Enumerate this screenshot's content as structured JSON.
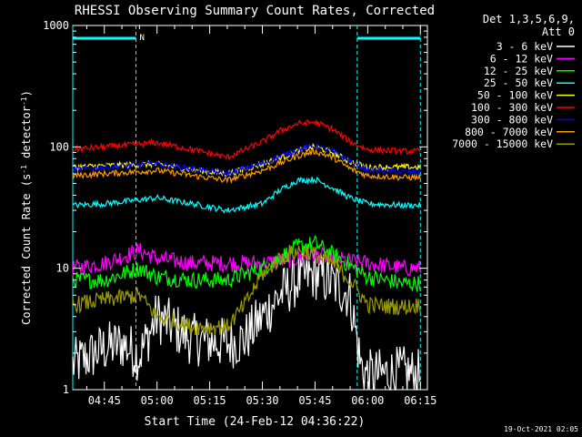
{
  "chart_data": {
    "type": "line",
    "title": "RHESSI Observing Summary Count Rates, Corrected",
    "xlabel": "Start Time (24-Feb-12 04:36:22)",
    "ylabel": "Corrected Count Rate (s⁻¹ detector⁻¹)",
    "ylabel_parts": {
      "main": "Corrected Count Rate (s",
      "sup1": "-1",
      "mid": " detector",
      "sup2": "-1",
      "end": ")"
    },
    "yscale": "log",
    "ylim": [
      1,
      1000
    ],
    "ytick_labels": [
      "1",
      "10",
      "100",
      "1000"
    ],
    "ytick_values": [
      1,
      10,
      100,
      1000
    ],
    "xlim": [
      "04:36",
      "06:17"
    ],
    "xtick_labels": [
      "04:45",
      "05:00",
      "05:15",
      "05:30",
      "05:45",
      "06:00",
      "06:15"
    ],
    "legend_header": [
      "Det 1,3,5,6,9,",
      "Att 0"
    ],
    "legend_position": "right",
    "grid": false,
    "footer": "19-Oct-2021 02:05",
    "night_marker_label": "N",
    "night_intervals": [
      [
        "04:36",
        "04:54"
      ],
      [
        "05:57",
        "06:15"
      ]
    ],
    "series": [
      {
        "name": "3 - 6 keV",
        "color": "#ffffff",
        "x": [
          "04:36",
          "04:45",
          "04:50",
          "04:55",
          "05:00",
          "05:10",
          "05:20",
          "05:25",
          "05:30",
          "05:35",
          "05:40",
          "05:45",
          "05:50",
          "05:55",
          "05:58",
          "06:00",
          "06:10",
          "06:15"
        ],
        "y": [
          1.6,
          2.2,
          2.4,
          1.9,
          4.0,
          2.6,
          2.4,
          2.6,
          4.0,
          6.0,
          8.0,
          9.0,
          7.5,
          6.0,
          1.6,
          1.3,
          1.4,
          1.3
        ]
      },
      {
        "name": "6 - 12 keV",
        "color": "#ff00ff",
        "x": [
          "04:36",
          "04:45",
          "04:55",
          "05:00",
          "05:10",
          "05:20",
          "05:30",
          "05:40",
          "05:45",
          "05:50",
          "06:00",
          "06:10",
          "06:15"
        ],
        "y": [
          10,
          11,
          14,
          12,
          11,
          11,
          11,
          12,
          13,
          12,
          11,
          10,
          10
        ]
      },
      {
        "name": "12 - 25 keV",
        "color": "#00ff00",
        "x": [
          "04:36",
          "04:45",
          "04:55",
          "05:00",
          "05:10",
          "05:20",
          "05:30",
          "05:40",
          "05:45",
          "05:50",
          "06:00",
          "06:10",
          "06:15"
        ],
        "y": [
          8,
          8,
          10,
          8.5,
          8,
          8,
          10,
          15,
          16,
          13,
          8.5,
          7.5,
          7.5
        ]
      },
      {
        "name": "25 - 50 keV",
        "color": "#00ffff",
        "x": [
          "04:36",
          "04:45",
          "05:00",
          "05:10",
          "05:20",
          "05:30",
          "05:35",
          "05:40",
          "05:45",
          "05:50",
          "05:55",
          "06:00",
          "06:10",
          "06:15"
        ],
        "y": [
          33,
          34,
          38,
          34,
          30,
          34,
          44,
          53,
          54,
          46,
          38,
          34,
          33,
          33
        ]
      },
      {
        "name": "50 - 100 keV",
        "color": "#ffff00",
        "x": [
          "04:36",
          "04:45",
          "05:00",
          "05:10",
          "05:20",
          "05:30",
          "05:40",
          "05:45",
          "05:50",
          "05:55",
          "06:00",
          "06:10",
          "06:15"
        ],
        "y": [
          68,
          70,
          72,
          65,
          60,
          72,
          92,
          100,
          90,
          75,
          68,
          68,
          68
        ]
      },
      {
        "name": "100 - 300 keV",
        "color": "#ff0000",
        "x": [
          "04:36",
          "04:45",
          "05:00",
          "05:10",
          "05:20",
          "05:30",
          "05:35",
          "05:40",
          "05:45",
          "05:50",
          "05:55",
          "06:00",
          "06:10",
          "06:15"
        ],
        "y": [
          95,
          100,
          108,
          95,
          82,
          110,
          135,
          155,
          160,
          140,
          110,
          95,
          92,
          92
        ]
      },
      {
        "name": "300 - 800 keV",
        "color": "#0000ff",
        "x": [
          "04:36",
          "04:45",
          "05:00",
          "05:10",
          "05:20",
          "05:30",
          "05:40",
          "05:45",
          "05:50",
          "05:55",
          "06:00",
          "06:10",
          "06:15"
        ],
        "y": [
          65,
          68,
          73,
          66,
          60,
          73,
          95,
          102,
          92,
          76,
          65,
          62,
          62
        ]
      },
      {
        "name": "800 - 7000 keV",
        "color": "#ff9900",
        "x": [
          "04:36",
          "04:45",
          "05:00",
          "05:10",
          "05:20",
          "05:30",
          "05:40",
          "05:45",
          "05:50",
          "05:55",
          "06:00",
          "06:10",
          "06:15"
        ],
        "y": [
          58,
          60,
          64,
          58,
          53,
          64,
          84,
          92,
          82,
          66,
          58,
          56,
          56
        ]
      },
      {
        "name": "7000 - 15000 keV",
        "color": "#999900",
        "x": [
          "04:36",
          "04:45",
          "04:55",
          "05:00",
          "05:10",
          "05:20",
          "05:25",
          "05:30",
          "05:35",
          "05:40",
          "05:45",
          "05:50",
          "05:55",
          "06:00",
          "06:10",
          "06:15"
        ],
        "y": [
          5,
          5.5,
          6,
          4,
          3.3,
          3.3,
          5,
          9,
          12,
          14,
          13,
          11,
          8,
          5,
          4.8,
          5
        ]
      }
    ]
  }
}
